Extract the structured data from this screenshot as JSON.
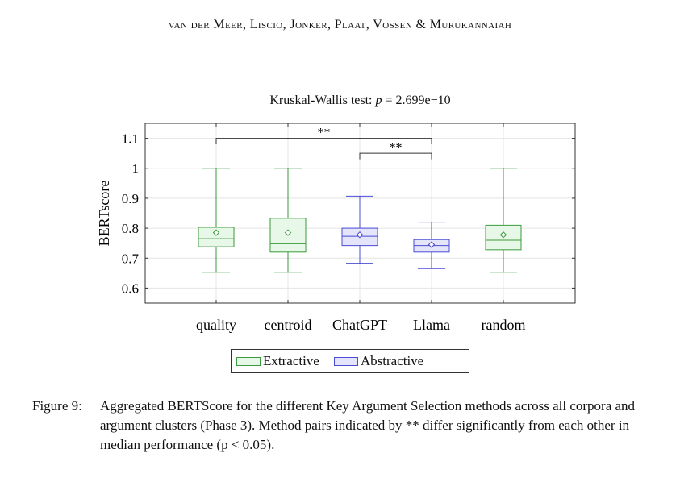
{
  "running_head": "van der Meer, Liscio, Jonker, Plaat, Vossen & Murukannaiah",
  "chart_data": {
    "type": "box",
    "title_prefix": "Kruskal-Wallis test: ",
    "title_var": "p",
    "title_value": " = 2.699e−10",
    "ylabel": "BERTscore",
    "xlabel": "",
    "ylim": [
      0.55,
      1.15
    ],
    "yticks": [
      0.6,
      0.7,
      0.8,
      0.9,
      1,
      1.1
    ],
    "ytick_labels": [
      "0.6",
      "0.7",
      "0.8",
      "0.9",
      "1",
      "1.1"
    ],
    "grid": true,
    "categories": [
      "quality",
      "centroid",
      "ChatGPT",
      "Llama",
      "random"
    ],
    "groups": [
      "Extractive",
      "Extractive",
      "Abstractive",
      "Abstractive",
      "Extractive"
    ],
    "boxes": [
      {
        "min": 0.653,
        "q1": 0.738,
        "median": 0.765,
        "q3": 0.803,
        "max": 1.0,
        "mean": 0.785
      },
      {
        "min": 0.653,
        "q1": 0.72,
        "median": 0.748,
        "q3": 0.833,
        "max": 1.0,
        "mean": 0.785
      },
      {
        "min": 0.683,
        "q1": 0.742,
        "median": 0.773,
        "q3": 0.8,
        "max": 0.907,
        "mean": 0.778
      },
      {
        "min": 0.665,
        "q1": 0.72,
        "median": 0.742,
        "q3": 0.762,
        "max": 0.82,
        "mean": 0.745
      },
      {
        "min": 0.653,
        "q1": 0.728,
        "median": 0.76,
        "q3": 0.81,
        "max": 1.0,
        "mean": 0.778
      }
    ],
    "significance": [
      {
        "from": 0,
        "to": 3,
        "label": "**",
        "y": 1.1,
        "tick": 1.08
      },
      {
        "from": 2,
        "to": 3,
        "label": "**",
        "y": 1.05,
        "tick": 1.03
      }
    ],
    "legend": [
      {
        "label": "Extractive",
        "stroke": "#3a9a3a",
        "fill": "#e8f8e8"
      },
      {
        "label": "Abstractive",
        "stroke": "#4b4bd6",
        "fill": "#e4e4fb"
      }
    ],
    "legend_position": "bottom"
  },
  "caption": {
    "label": "Figure 9:",
    "text": "Aggregated BERTScore for the different Key Argument Selection methods across all corpora and argument clusters (Phase 3). Method pairs indicated by ** differ significantly from each other in median performance (p < 0.05)."
  }
}
